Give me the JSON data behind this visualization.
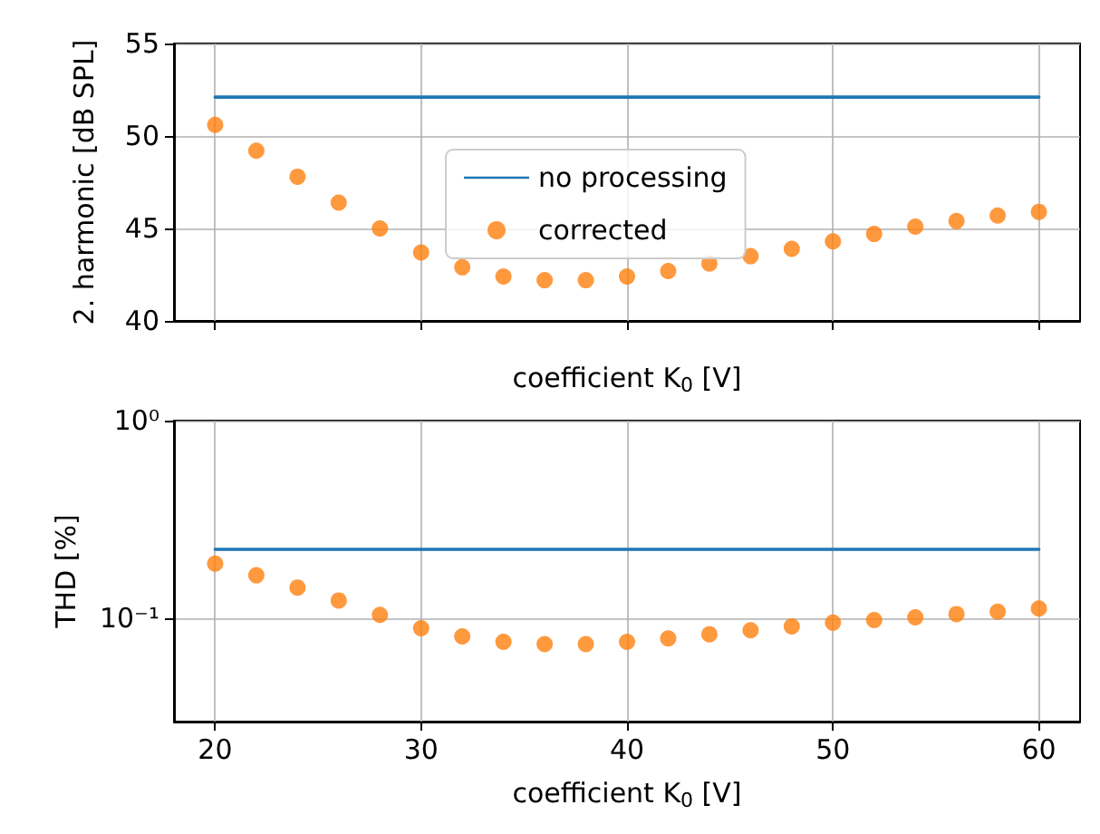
{
  "chart_data": [
    {
      "type": "scatter",
      "ylabel": "2. harmonic [dB SPL]",
      "xlabel": "coefficient K$_{0}$ [V]",
      "x": [
        20,
        22,
        24,
        26,
        28,
        30,
        32,
        34,
        36,
        38,
        40,
        42,
        44,
        46,
        48,
        50,
        52,
        54,
        56,
        58,
        60
      ],
      "xlim": [
        18,
        62
      ],
      "xticks": [
        20,
        30,
        40,
        50,
        60
      ],
      "ylim": [
        40,
        55
      ],
      "yticks": [
        40,
        45,
        50,
        55
      ],
      "grid": true,
      "legend": "center",
      "tick_labels": "y",
      "series": [
        {
          "name": "no processing",
          "type": "line",
          "marker": "none",
          "line_style": "solid",
          "color": "#1f77b4",
          "values": [
            52.1,
            52.1,
            52.1,
            52.1,
            52.1,
            52.1,
            52.1,
            52.1,
            52.1,
            52.1,
            52.1,
            52.1,
            52.1,
            52.1,
            52.1,
            52.1,
            52.1,
            52.1,
            52.1,
            52.1,
            52.1
          ]
        },
        {
          "name": "corrected",
          "marker": "circle",
          "color": "#ff7f0e",
          "values": [
            50.6,
            49.2,
            47.8,
            46.4,
            45.0,
            43.7,
            42.9,
            42.4,
            42.2,
            42.2,
            42.4,
            42.7,
            43.1,
            43.5,
            43.9,
            44.3,
            44.7,
            45.1,
            45.4,
            45.7,
            45.9
          ]
        }
      ]
    },
    {
      "type": "scatter",
      "ylabel": "THD [%]",
      "xlabel": "coefficient K$_{0}$ [V]",
      "x": [
        20,
        22,
        24,
        26,
        28,
        30,
        32,
        34,
        36,
        38,
        40,
        42,
        44,
        46,
        48,
        50,
        52,
        54,
        56,
        58,
        60
      ],
      "xlim": [
        18,
        62
      ],
      "xticks": [
        20,
        30,
        40,
        50,
        60
      ],
      "ylim": [
        0.03,
        1
      ],
      "yticks": [
        {
          "value": 0.1,
          "label": "10⁻¹"
        },
        {
          "value": 1,
          "label": "10⁰"
        }
      ],
      "log": "y",
      "grid": true,
      "series": [
        {
          "type": "line",
          "marker": "none",
          "line_style": "solid",
          "color": "#1f77b4",
          "values": [
            0.223,
            0.223,
            0.223,
            0.223,
            0.223,
            0.223,
            0.223,
            0.223,
            0.223,
            0.223,
            0.223,
            0.223,
            0.223,
            0.223,
            0.223,
            0.223,
            0.223,
            0.223,
            0.223,
            0.223,
            0.223
          ]
        },
        {
          "marker": "circle",
          "color": "#ff7f0e",
          "values": [
            0.189,
            0.165,
            0.143,
            0.123,
            0.104,
            0.089,
            0.081,
            0.076,
            0.074,
            0.074,
            0.076,
            0.079,
            0.083,
            0.087,
            0.091,
            0.095,
            0.098,
            0.101,
            0.105,
            0.108,
            0.112
          ]
        }
      ]
    }
  ]
}
